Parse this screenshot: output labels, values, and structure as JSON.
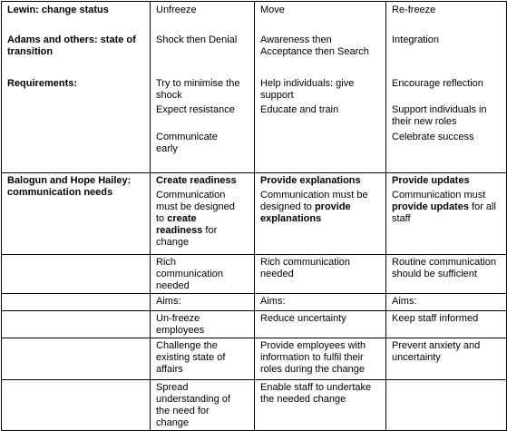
{
  "table": {
    "lewin": {
      "label": "Lewin: change status",
      "stages": [
        "Unfreeze",
        "Move",
        "Re-freeze"
      ]
    },
    "adams": {
      "label": "Adams and others: state of transition",
      "states": [
        "Shock then Denial",
        "Awareness then Acceptance then Search",
        "Integration"
      ]
    },
    "requirements": {
      "label": "Requirements:",
      "items": [
        [
          "Try to minimise the shock",
          "Expect resistance",
          "Communicate early"
        ],
        [
          "Help individuals: give support",
          "Educate and train"
        ],
        [
          "Encourage reflection",
          "Support individuals in their new roles",
          "Celebrate success"
        ]
      ]
    },
    "balogun": {
      "label": "Balogun and Hope Hailey: communication needs",
      "headings": [
        "Create readiness",
        "Provide explanations",
        "Provide updates"
      ],
      "descriptions": [
        [
          "Communication must be designed to ",
          "create readiness",
          " for change"
        ],
        [
          "Communication must be designed to ",
          "provide explanations"
        ],
        [
          "Communication must ",
          "provide updates",
          " for all staff"
        ]
      ]
    },
    "rows": [
      [
        "Rich communication needed",
        "Rich communication needed",
        "Routine communication should be sufficient"
      ],
      [
        "Aims:",
        "Aims:",
        "Aims:"
      ],
      [
        "Un-freeze employees",
        "Reduce uncertainty",
        "Keep staff informed"
      ],
      [
        "Challenge the existing state of affairs",
        "Provide employees with information to fulfil their roles during the change",
        "Prevent anxiety and uncertainty"
      ],
      [
        "Spread understanding of the need for change",
        "Enable staff to undertake the needed change"
      ]
    ]
  }
}
